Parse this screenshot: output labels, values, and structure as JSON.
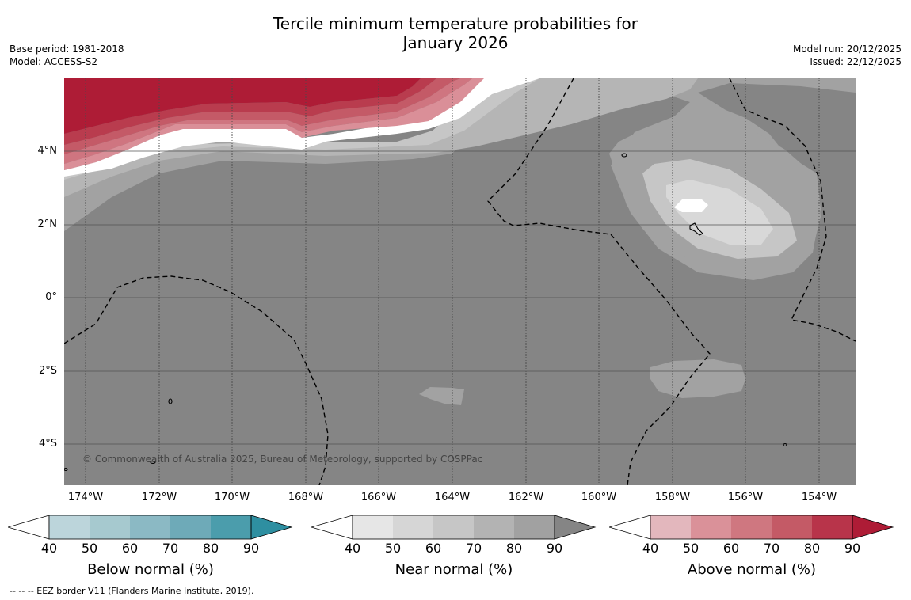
{
  "title": {
    "line1": "Tercile minimum temperature probabilities for",
    "line2": "January 2026"
  },
  "meta": {
    "base_period": "Base period: 1981-2018",
    "model": "Model: ACCESS-S2",
    "model_run": "Model run: 20/12/2025",
    "issued": "Issued: 22/12/2025"
  },
  "map": {
    "lat_labels": [
      "4°N",
      "2°N",
      "0°",
      "2°S",
      "4°S"
    ],
    "lon_labels": [
      "174°W",
      "172°W",
      "170°W",
      "168°W",
      "166°W",
      "164°W",
      "162°W",
      "160°W",
      "158°W",
      "156°W",
      "154°W"
    ],
    "copyright": "© Commonwealth of Australia 2025, Bureau of Meteorology, supported by COSPPac",
    "colors": {
      "background": "#858585",
      "near_60": "#c6c6c6",
      "near_70": "#b5b5b5",
      "near_80": "#a2a2a2",
      "near_50": "#d8d8d8",
      "above_50": "#da8f98",
      "above_60": "#cf7580",
      "above_70": "#c45a67",
      "above_80": "#b93c4e",
      "above_90": "#ae1c36"
    }
  },
  "colorbars": [
    {
      "label": "Below normal (%)",
      "ticks": [
        "40",
        "50",
        "60",
        "70",
        "80",
        "90"
      ],
      "colors": [
        "#bcd5db",
        "#a6c9cf",
        "#8bb9c4",
        "#6eaab8",
        "#4b9dac",
        "#2e8fa1"
      ]
    },
    {
      "label": "Near normal (%)",
      "ticks": [
        "40",
        "50",
        "60",
        "70",
        "80",
        "90"
      ],
      "colors": [
        "#e6e6e6",
        "#d6d6d6",
        "#c6c6c6",
        "#b3b3b3",
        "#a1a1a1",
        "#858585"
      ]
    },
    {
      "label": "Above normal (%)",
      "ticks": [
        "40",
        "50",
        "60",
        "70",
        "80",
        "90"
      ],
      "colors": [
        "#e3b7bd",
        "#da9199",
        "#cf7780",
        "#c45a66",
        "#b8344a",
        "#ae1c36"
      ]
    }
  ],
  "footnote": "--  --  -- EEZ border V11 (Flanders Marine Institute, 2019)."
}
